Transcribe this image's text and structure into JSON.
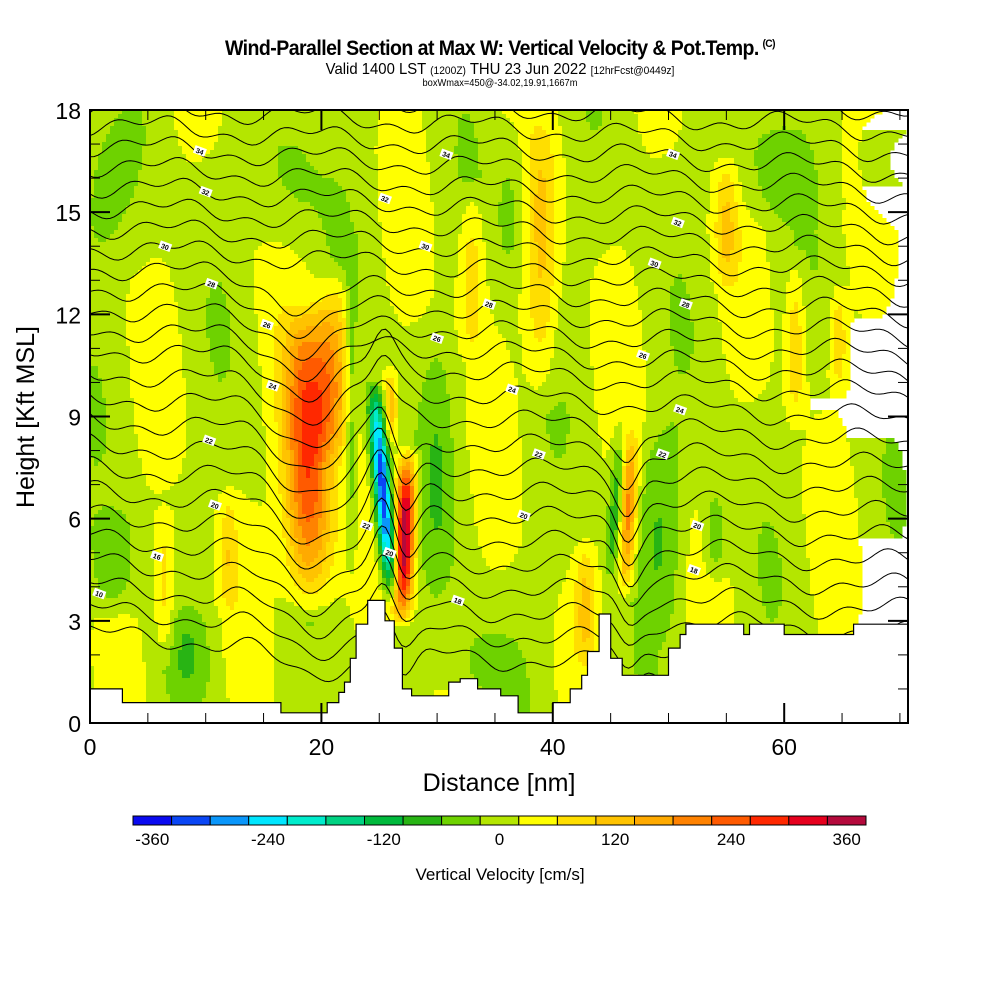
{
  "header": {
    "title": "Wind-Parallel Section at Max W: Vertical Velocity & Pot.Temp.",
    "copyright": "(C)",
    "valid_prefix": "Valid 1400 LST",
    "valid_utc": "(1200Z)",
    "valid_date": "THU 23 Jun 2022",
    "forecast": "[12hrFcst@0449z]",
    "box_info": "boxWmax=450@-34.02,19.91,1667m"
  },
  "chart_data": {
    "type": "heatmap",
    "title": "Wind-Parallel Section at Max W: Vertical Velocity & Pot.Temp.",
    "xlabel": "Distance [nm]",
    "ylabel": "Height [Kft MSL]",
    "xlim": [
      0,
      70.7
    ],
    "ylim": [
      0,
      18
    ],
    "x_ticks": [
      "0",
      "20",
      "40",
      "60"
    ],
    "x_tick_values": [
      0,
      20,
      40,
      60
    ],
    "x_minor_step": 5,
    "y_ticks": [
      "0",
      "3",
      "6",
      "9",
      "12",
      "15",
      "18"
    ],
    "y_tick_values": [
      0,
      3,
      6,
      9,
      12,
      15,
      18
    ],
    "y_minor_step": 1,
    "colorbar": {
      "label": "Vertical Velocity [cm/s]",
      "tick_labels": [
        "-360",
        "-240",
        "-120",
        "0",
        "120",
        "240",
        "360"
      ],
      "tick_values": [
        -360,
        -240,
        -120,
        0,
        120,
        240,
        360
      ],
      "bounds": [
        -380,
        -340,
        -300,
        -260,
        -220,
        -180,
        -140,
        -100,
        -60,
        -20,
        20,
        60,
        100,
        140,
        180,
        220,
        260,
        300,
        340,
        380
      ],
      "colors": [
        "#0a0af0",
        "#0a46f5",
        "#0a96fa",
        "#00e6ff",
        "#00eccc",
        "#00d282",
        "#00b93c",
        "#28b414",
        "#6ed200",
        "#b4e600",
        "#ffff00",
        "#ffde00",
        "#ffc300",
        "#ffaa00",
        "#ff8200",
        "#ff5a00",
        "#ff2800",
        "#e6001e",
        "#b40a3c"
      ]
    },
    "background_value": 0,
    "w_features": [
      {
        "x_center": 18.8,
        "y_bottom": 3.0,
        "y_top": 12.5,
        "half_width": 2.2,
        "peak": 270,
        "tilt": -0.05
      },
      {
        "x_center": 21.0,
        "y_bottom": 7.5,
        "y_top": 13.5,
        "half_width": 1.8,
        "peak": 140,
        "tilt": 0.05
      },
      {
        "x_center": 27.2,
        "y_bottom": 2.8,
        "y_top": 8.2,
        "half_width": 0.9,
        "peak": 370,
        "tilt": 0.1
      },
      {
        "x_center": 25.3,
        "y_bottom": 3.4,
        "y_top": 10.2,
        "half_width": 0.8,
        "peak": -360,
        "tilt": -0.25
      },
      {
        "x_center": 26.0,
        "y_bottom": 8.0,
        "y_top": 10.5,
        "half_width": 0.6,
        "peak": 110,
        "tilt": 0.0
      },
      {
        "x_center": 46.5,
        "y_bottom": 3.5,
        "y_top": 8.8,
        "half_width": 0.8,
        "peak": 190,
        "tilt": 0.1
      },
      {
        "x_center": 45.5,
        "y_bottom": 4.0,
        "y_top": 9.0,
        "half_width": 0.7,
        "peak": -110,
        "tilt": 0.2
      },
      {
        "x_center": 39.0,
        "y_bottom": 9.0,
        "y_top": 18.0,
        "half_width": 1.5,
        "peak": 95,
        "tilt": 0.0
      },
      {
        "x_center": 33.0,
        "y_bottom": 10.5,
        "y_top": 16.0,
        "half_width": 1.2,
        "peak": 85,
        "tilt": 0.0
      },
      {
        "x_center": 55.0,
        "y_bottom": 12.5,
        "y_top": 16.8,
        "half_width": 1.1,
        "peak": 85,
        "tilt": 0.0
      },
      {
        "x_center": 64.7,
        "y_bottom": 9.5,
        "y_top": 13.0,
        "half_width": 0.8,
        "peak": 80,
        "tilt": 0.0
      },
      {
        "x_center": 61.0,
        "y_bottom": 8.5,
        "y_top": 14.0,
        "half_width": 0.9,
        "peak": 85,
        "tilt": 0.0
      },
      {
        "x_center": 12.0,
        "y_bottom": 3.0,
        "y_top": 7.0,
        "half_width": 0.8,
        "peak": 70,
        "tilt": 0.0
      },
      {
        "x_center": 6.5,
        "y_bottom": 1.5,
        "y_top": 6.5,
        "half_width": 0.9,
        "peak": 75,
        "tilt": 0.0
      },
      {
        "x_center": 42.8,
        "y_bottom": 1.5,
        "y_top": 5.5,
        "half_width": 1.0,
        "peak": 90,
        "tilt": 0.0
      },
      {
        "x_center": 2.0,
        "y_bottom": 3.0,
        "y_top": 6.5,
        "half_width": 2.0,
        "peak": -70,
        "tilt": 0.0
      },
      {
        "x_center": 0.5,
        "y_bottom": 13.0,
        "y_top": 18.0,
        "half_width": 3.5,
        "peak": -45,
        "tilt": 0.0
      },
      {
        "x_center": 17.0,
        "y_bottom": 13.5,
        "y_top": 18.0,
        "half_width": 3.0,
        "peak": -45,
        "tilt": 0.0
      },
      {
        "x_center": 22.6,
        "y_bottom": 4.0,
        "y_top": 14.5,
        "half_width": 0.6,
        "peak": -80,
        "tilt": 0.0
      },
      {
        "x_center": 30.0,
        "y_bottom": 3.0,
        "y_top": 12.0,
        "half_width": 1.5,
        "peak": -45,
        "tilt": 0.0
      },
      {
        "x_center": 48.5,
        "y_bottom": 3.0,
        "y_top": 9.0,
        "half_width": 1.6,
        "peak": -45,
        "tilt": 0.0
      },
      {
        "x_center": 50.0,
        "y_bottom": 2.0,
        "y_top": 9.5,
        "half_width": 1.5,
        "peak": -45,
        "tilt": 0.0
      },
      {
        "x_center": 54.0,
        "y_bottom": 4.0,
        "y_top": 7.0,
        "half_width": 1.0,
        "peak": -75,
        "tilt": 0.0
      },
      {
        "x_center": 59.0,
        "y_bottom": 14.5,
        "y_top": 18.0,
        "half_width": 3.5,
        "peak": -45,
        "tilt": 0.0
      },
      {
        "x_center": 68.5,
        "y_bottom": 14.5,
        "y_top": 18.0,
        "half_width": 2.5,
        "peak": -45,
        "tilt": 0.0
      },
      {
        "x_center": 36.5,
        "y_bottom": 12.5,
        "y_top": 18.0,
        "half_width": 1.5,
        "peak": -45,
        "tilt": 0.0
      },
      {
        "x_center": 8.5,
        "y_bottom": 0.5,
        "y_top": 3.5,
        "half_width": 2.0,
        "peak": -45,
        "tilt": 0.0
      },
      {
        "x_center": 34.0,
        "y_bottom": 0.5,
        "y_top": 3.0,
        "half_width": 3.0,
        "peak": -45,
        "tilt": 0.0
      }
    ],
    "terrain": {
      "x": [
        0,
        2.8,
        2.8,
        16.5,
        16.5,
        20.5,
        20.5,
        21.5,
        21.5,
        22.0,
        22.0,
        22.5,
        22.5,
        23.0,
        23.0,
        24.0,
        24.0,
        25.5,
        25.5,
        26.3,
        26.3,
        27.0,
        27.0,
        27.8,
        27.8,
        31.0,
        31.0,
        32.0,
        32.0,
        33.5,
        33.5,
        35.5,
        35.5,
        37.0,
        37.0,
        37.5,
        37.5,
        40.0,
        40.0,
        41.5,
        41.5,
        42.5,
        42.5,
        43.0,
        43.0,
        44.0,
        44.0,
        45.0,
        45.0,
        46.0,
        46.0,
        46.5,
        46.5,
        50.0,
        50.0,
        51.0,
        51.0,
        51.5,
        51.5,
        52.0,
        52.0,
        52.5,
        52.5,
        56.5,
        56.5,
        57.0,
        57.0,
        60.0,
        60.0,
        66.0,
        66.0,
        70.7
      ],
      "y": [
        1.0,
        1.0,
        0.6,
        0.6,
        0.3,
        0.3,
        0.6,
        0.6,
        0.9,
        0.9,
        1.2,
        1.2,
        1.9,
        1.9,
        2.9,
        2.9,
        3.6,
        3.6,
        3.0,
        3.0,
        2.2,
        2.2,
        1.0,
        1.0,
        0.8,
        0.8,
        1.2,
        1.2,
        1.3,
        1.3,
        1.0,
        1.0,
        0.8,
        0.8,
        0.3,
        0.3,
        0.3,
        0.3,
        0.6,
        0.6,
        1.0,
        1.0,
        1.4,
        1.4,
        2.1,
        2.1,
        3.2,
        3.2,
        1.9,
        1.9,
        1.4,
        1.4,
        1.4,
        1.4,
        2.2,
        2.2,
        2.6,
        2.6,
        2.9,
        2.9,
        2.9,
        2.9,
        2.9,
        2.9,
        2.6,
        2.6,
        2.9,
        2.9,
        2.6,
        2.6,
        2.9,
        2.9
      ]
    },
    "theta_contours": {
      "levels_k": [
        10,
        12,
        14,
        16,
        18,
        20,
        22,
        24,
        26,
        28,
        30,
        32,
        34,
        36,
        38,
        40,
        42,
        44,
        46,
        48,
        50,
        52,
        54,
        56,
        58,
        60,
        62,
        64
      ],
      "base_heights_kft": [
        2.6,
        3.3,
        4.0,
        4.7,
        5.4,
        6.1,
        6.8,
        7.5,
        8.2,
        8.9,
        9.6,
        10.3,
        11.0,
        11.6,
        12.2,
        12.8,
        13.4,
        14.0,
        14.6,
        15.2,
        15.8,
        16.4,
        17.0,
        17.6,
        18.2,
        18.8,
        19.4,
        20.0
      ],
      "labels": [
        {
          "text": "10",
          "x": 0.8,
          "y": 3.8
        },
        {
          "text": "16",
          "x": 5.8,
          "y": 4.9
        },
        {
          "text": "20",
          "x": 10.8,
          "y": 6.4
        },
        {
          "text": "22",
          "x": 10.3,
          "y": 8.3
        },
        {
          "text": "24",
          "x": 15.8,
          "y": 9.9
        },
        {
          "text": "26",
          "x": 15.3,
          "y": 11.7
        },
        {
          "text": "28",
          "x": 10.5,
          "y": 12.9
        },
        {
          "text": "30",
          "x": 6.5,
          "y": 14.0
        },
        {
          "text": "32",
          "x": 10.0,
          "y": 15.6
        },
        {
          "text": "34",
          "x": 9.5,
          "y": 16.8
        },
        {
          "text": "32",
          "x": 25.5,
          "y": 15.4
        },
        {
          "text": "30",
          "x": 29.0,
          "y": 14.0
        },
        {
          "text": "28",
          "x": 34.5,
          "y": 12.3
        },
        {
          "text": "26",
          "x": 30.0,
          "y": 11.3
        },
        {
          "text": "24",
          "x": 36.5,
          "y": 9.8
        },
        {
          "text": "22",
          "x": 38.8,
          "y": 7.9
        },
        {
          "text": "20",
          "x": 37.5,
          "y": 6.1
        },
        {
          "text": "18",
          "x": 31.8,
          "y": 3.6
        },
        {
          "text": "22",
          "x": 23.9,
          "y": 5.8
        },
        {
          "text": "20",
          "x": 25.9,
          "y": 5.0
        },
        {
          "text": "34",
          "x": 30.8,
          "y": 16.7
        },
        {
          "text": "34",
          "x": 50.4,
          "y": 16.7
        },
        {
          "text": "32",
          "x": 50.8,
          "y": 14.7
        },
        {
          "text": "30",
          "x": 48.8,
          "y": 13.5
        },
        {
          "text": "28",
          "x": 51.5,
          "y": 12.3
        },
        {
          "text": "26",
          "x": 47.8,
          "y": 10.8
        },
        {
          "text": "24",
          "x": 51.0,
          "y": 9.2
        },
        {
          "text": "22",
          "x": 49.5,
          "y": 7.9
        },
        {
          "text": "20",
          "x": 52.5,
          "y": 5.8
        },
        {
          "text": "18",
          "x": 52.2,
          "y": 4.5
        }
      ]
    }
  }
}
